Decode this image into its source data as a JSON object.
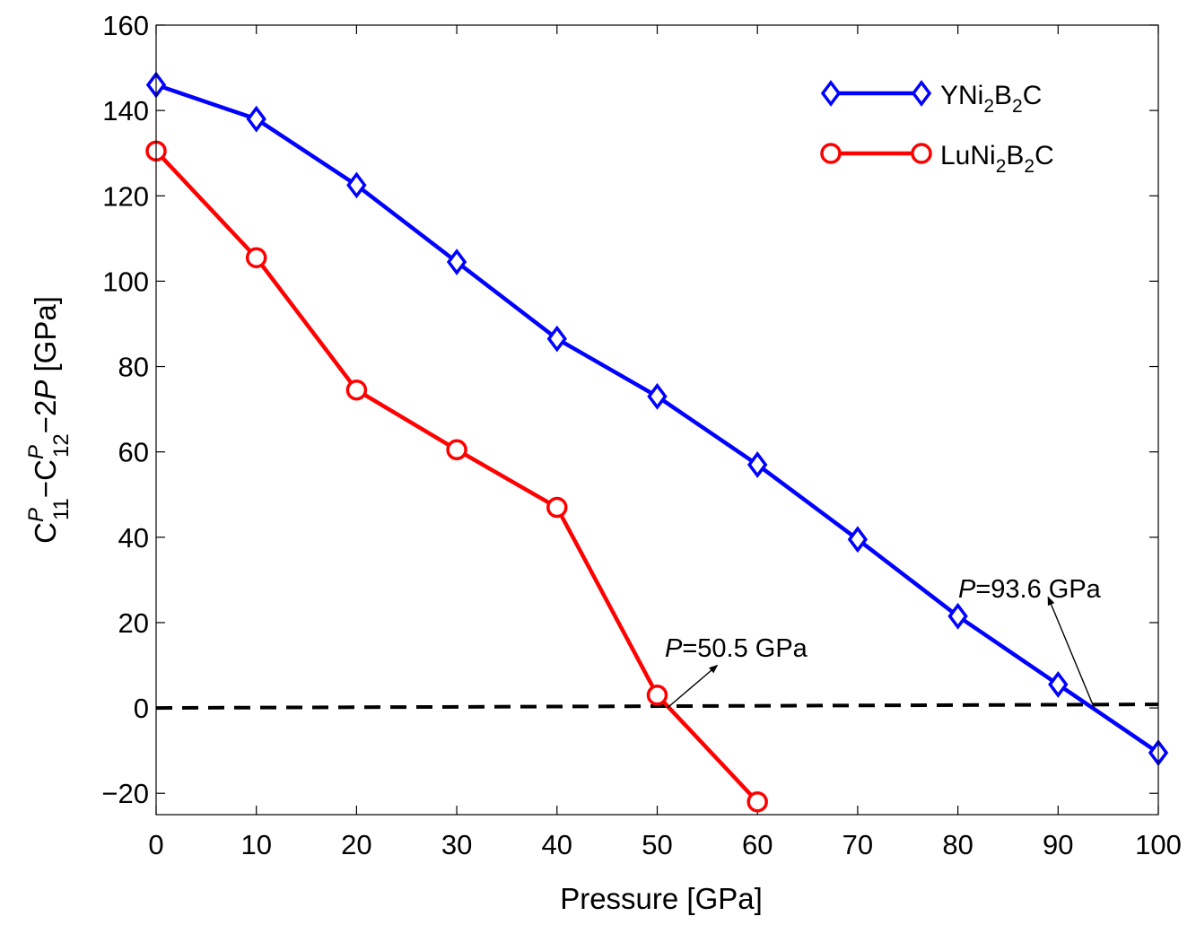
{
  "chart_data": {
    "type": "line",
    "title": "",
    "xlabel": "Pressure [GPa]",
    "ylabel_parts": [
      "C",
      "P",
      "11",
      "−C",
      "P",
      "12",
      "−2",
      "P",
      " [GPa]"
    ],
    "xlim": [
      0,
      100
    ],
    "ylim": [
      -25,
      160
    ],
    "xticks": [
      0,
      10,
      20,
      30,
      40,
      50,
      60,
      70,
      80,
      90,
      100
    ],
    "yticks": [
      -20,
      0,
      20,
      40,
      60,
      80,
      100,
      120,
      140,
      160
    ],
    "ytick_labels": [
      "−20",
      "0",
      "20",
      "40",
      "60",
      "80",
      "100",
      "120",
      "140",
      "160"
    ],
    "grid": false,
    "legend_position": "top-right",
    "series": [
      {
        "name": "YNi2B2C",
        "label_parts": [
          "YNi",
          "2",
          "B",
          "2",
          "C"
        ],
        "color": "#0000ff",
        "marker": "diamond",
        "x": [
          0,
          10,
          20,
          30,
          40,
          50,
          60,
          70,
          80,
          90,
          100
        ],
        "values": [
          146,
          138,
          122.5,
          104.5,
          86.5,
          73,
          57,
          39.5,
          21.5,
          5.5,
          -10.5
        ]
      },
      {
        "name": "LuNi2B2C",
        "label_parts": [
          "LuNi",
          "2",
          "B",
          "2",
          "C"
        ],
        "color": "#ff0000",
        "marker": "circle",
        "x": [
          0,
          10,
          20,
          30,
          40,
          50,
          60
        ],
        "values": [
          130.5,
          105.5,
          74.5,
          60.5,
          47,
          3,
          -22
        ]
      }
    ],
    "reference_line": {
      "y": 0,
      "style": "dashed",
      "color": "#000000"
    },
    "annotations": [
      {
        "prefix": "P",
        "text": "=50.5 GPa",
        "arrow_from": [
          51,
          0
        ],
        "arrow_to": [
          56,
          10
        ]
      },
      {
        "prefix": "P",
        "text": "=93.6 GPa",
        "arrow_from": [
          93.6,
          0
        ],
        "arrow_to": [
          89,
          26
        ]
      }
    ]
  }
}
